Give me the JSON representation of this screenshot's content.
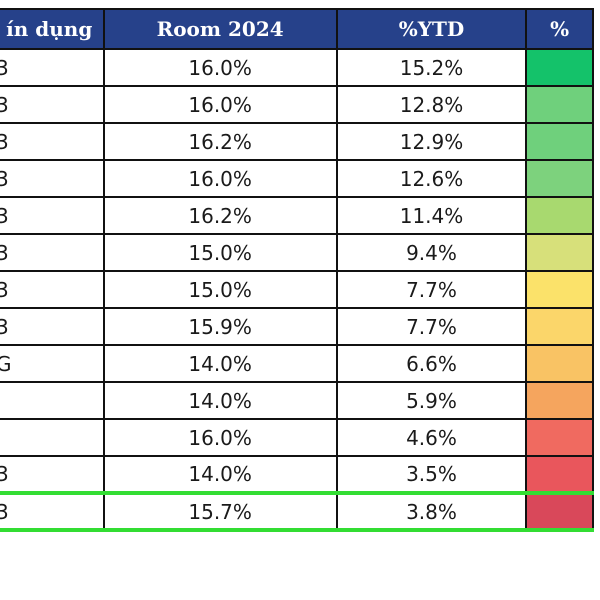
{
  "table": {
    "headers": {
      "name": "ín dụng",
      "room": "Room 2024",
      "ytd": "%YTD",
      "heat": "%"
    },
    "rows": [
      {
        "name": "3",
        "room": "16.0%",
        "ytd": "15.2%",
        "heat_color": "#14c26a"
      },
      {
        "name": "3",
        "room": "16.0%",
        "ytd": "12.8%",
        "heat_color": "#6fd07c"
      },
      {
        "name": "3",
        "room": "16.2%",
        "ytd": "12.9%",
        "heat_color": "#6fd07c"
      },
      {
        "name": "3",
        "room": "16.0%",
        "ytd": "12.6%",
        "heat_color": "#7dd27d"
      },
      {
        "name": "3",
        "room": "16.2%",
        "ytd": "11.4%",
        "heat_color": "#a8d96f"
      },
      {
        "name": "3",
        "room": "15.0%",
        "ytd": "9.4%",
        "heat_color": "#d7e07a"
      },
      {
        "name": "3",
        "room": "15.0%",
        "ytd": "7.7%",
        "heat_color": "#fbe26a"
      },
      {
        "name": "3",
        "room": "15.9%",
        "ytd": "7.7%",
        "heat_color": "#fbd66a"
      },
      {
        "name": "G",
        "room": "14.0%",
        "ytd": "6.6%",
        "heat_color": "#f9c364"
      },
      {
        "name": "",
        "room": "14.0%",
        "ytd": "5.9%",
        "heat_color": "#f5a55e"
      },
      {
        "name": "",
        "room": "16.0%",
        "ytd": "4.6%",
        "heat_color": "#f06a60"
      },
      {
        "name": "3",
        "room": "14.0%",
        "ytd": "3.5%",
        "heat_color": "#e9565c"
      },
      {
        "name": "3",
        "room": "15.7%",
        "ytd": "3.8%",
        "heat_color": "#d9485a",
        "highlighted": true
      }
    ],
    "highlight_color": "#33dd33",
    "header_color": "#26418a"
  }
}
